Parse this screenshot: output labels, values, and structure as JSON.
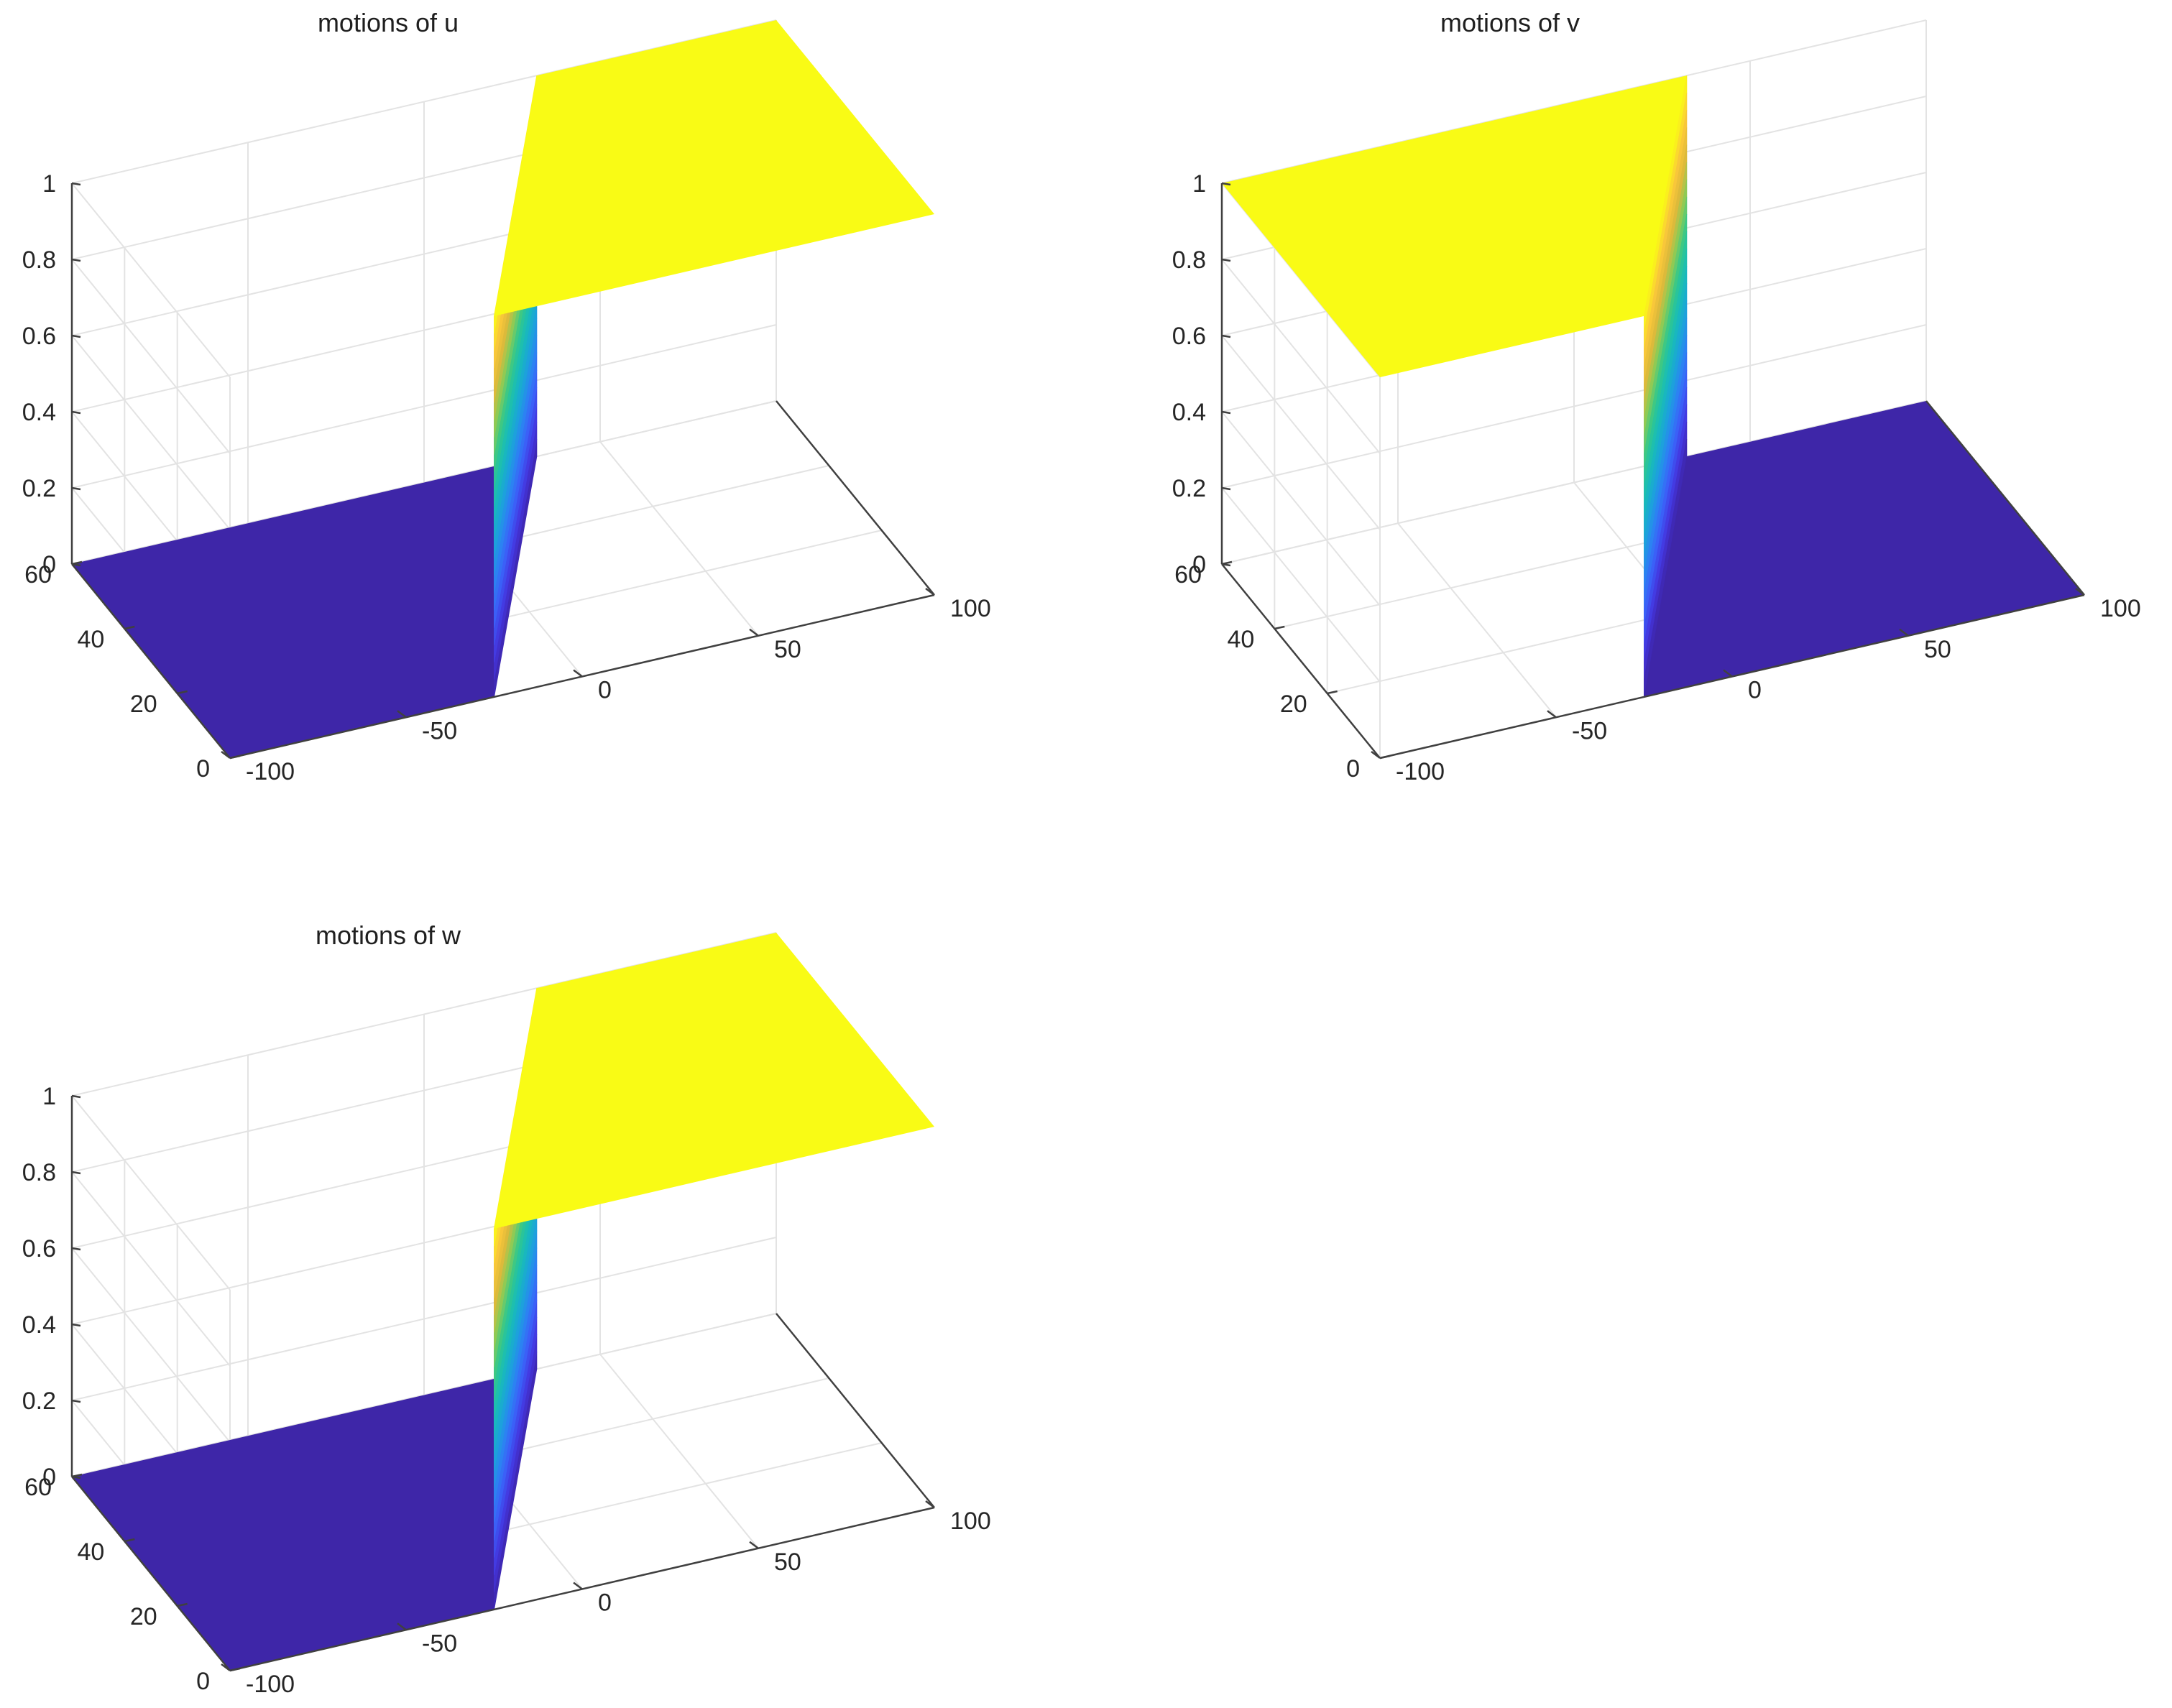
{
  "colors": {
    "colormap": [
      "#3e26a8",
      "#4435df",
      "#3c5ef7",
      "#2b84f2",
      "#1ba5d8",
      "#18bcb8",
      "#32c88c",
      "#8ccb55",
      "#e0b93a",
      "#fcc93a",
      "#f9fb15"
    ],
    "low": "#3e26a8",
    "high": "#f9fb15",
    "grid": "#e3e3e3",
    "axis": "#404040"
  },
  "chart_data": [
    {
      "type": "surface",
      "title": "motions of u",
      "x_label": "",
      "y_label": "",
      "z_label": "",
      "x_ticks": [
        -100,
        -50,
        0,
        50,
        100
      ],
      "y_ticks": [
        0,
        20,
        40,
        60
      ],
      "z_ticks": [
        0,
        0.2,
        0.4,
        0.6,
        0.8,
        1
      ],
      "x_range": [
        -100,
        100
      ],
      "y_range": [
        0,
        60
      ],
      "z_range": [
        0,
        1
      ],
      "grid": true,
      "front_level": "low",
      "back_level": "high",
      "front_value": 0,
      "back_value": 1,
      "wavefront": [
        {
          "t": 0,
          "x": -25
        },
        {
          "t": 60,
          "x": 32
        }
      ]
    },
    {
      "type": "surface",
      "title": "motions of v",
      "x_label": "",
      "y_label": "",
      "z_label": "",
      "x_ticks": [
        -100,
        -50,
        0,
        50,
        100
      ],
      "y_ticks": [
        0,
        20,
        40,
        60
      ],
      "z_ticks": [
        0,
        0.2,
        0.4,
        0.6,
        0.8,
        1
      ],
      "x_range": [
        -100,
        100
      ],
      "y_range": [
        0,
        60
      ],
      "z_range": [
        0,
        1
      ],
      "grid": true,
      "front_level": "high",
      "back_level": "low",
      "front_value": 1,
      "back_value": 0,
      "wavefront": [
        {
          "t": 0,
          "x": -25
        },
        {
          "t": 60,
          "x": 32
        }
      ]
    },
    {
      "type": "surface",
      "title": "motions of w",
      "x_label": "",
      "y_label": "",
      "z_label": "",
      "x_ticks": [
        -100,
        -50,
        0,
        50,
        100
      ],
      "y_ticks": [
        0,
        20,
        40,
        60
      ],
      "z_ticks": [
        0,
        0.2,
        0.4,
        0.6,
        0.8,
        1
      ],
      "x_range": [
        -100,
        100
      ],
      "y_range": [
        0,
        60
      ],
      "z_range": [
        0,
        1
      ],
      "grid": true,
      "front_level": "low",
      "back_level": "high",
      "front_value": 0,
      "back_value": 1,
      "wavefront": [
        {
          "t": 0,
          "x": -25
        },
        {
          "t": 60,
          "x": 32
        }
      ]
    }
  ]
}
